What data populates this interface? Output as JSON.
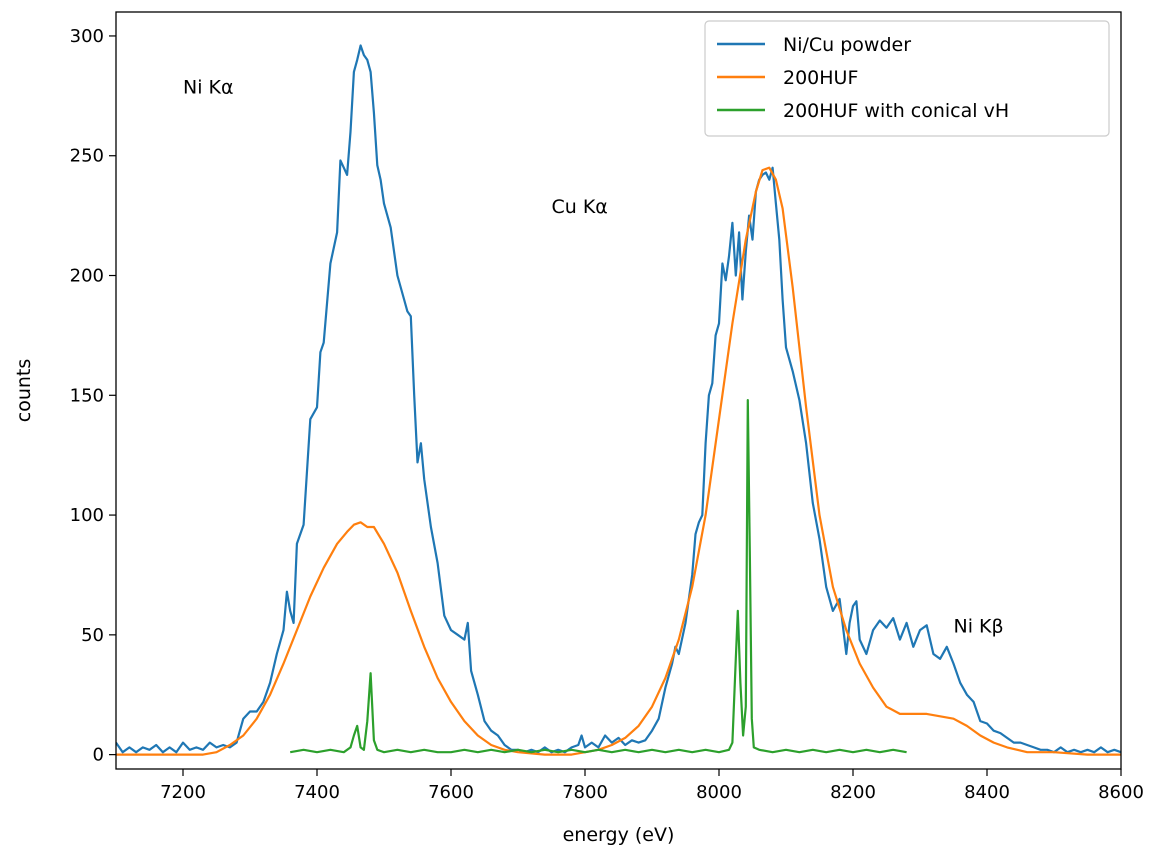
{
  "chart_data": {
    "type": "line",
    "title": "",
    "xlabel": "energy (eV)",
    "ylabel": "counts",
    "xlim": [
      7100,
      8600
    ],
    "ylim": [
      -6,
      310
    ],
    "xticks": [
      7200,
      7400,
      7600,
      7800,
      8000,
      8200,
      8400,
      8600
    ],
    "yticks": [
      0,
      50,
      100,
      150,
      200,
      250,
      300
    ],
    "grid": false,
    "legend": "top-right",
    "series": [
      {
        "name": "Ni/Cu powder",
        "color": "#1f77b4",
        "points": [
          [
            7100,
            5
          ],
          [
            7110,
            1
          ],
          [
            7120,
            3
          ],
          [
            7130,
            1
          ],
          [
            7140,
            3
          ],
          [
            7150,
            2
          ],
          [
            7160,
            4
          ],
          [
            7170,
            1
          ],
          [
            7180,
            3
          ],
          [
            7190,
            1
          ],
          [
            7200,
            5
          ],
          [
            7210,
            2
          ],
          [
            7220,
            3
          ],
          [
            7230,
            2
          ],
          [
            7240,
            5
          ],
          [
            7250,
            3
          ],
          [
            7260,
            4
          ],
          [
            7270,
            3
          ],
          [
            7280,
            5
          ],
          [
            7285,
            10
          ],
          [
            7290,
            15
          ],
          [
            7300,
            18
          ],
          [
            7310,
            18
          ],
          [
            7320,
            22
          ],
          [
            7330,
            30
          ],
          [
            7340,
            42
          ],
          [
            7350,
            52
          ],
          [
            7355,
            68
          ],
          [
            7360,
            60
          ],
          [
            7365,
            55
          ],
          [
            7370,
            88
          ],
          [
            7380,
            96
          ],
          [
            7390,
            140
          ],
          [
            7400,
            145
          ],
          [
            7405,
            168
          ],
          [
            7410,
            172
          ],
          [
            7420,
            205
          ],
          [
            7430,
            218
          ],
          [
            7435,
            248
          ],
          [
            7440,
            245
          ],
          [
            7445,
            242
          ],
          [
            7450,
            260
          ],
          [
            7455,
            285
          ],
          [
            7460,
            290
          ],
          [
            7465,
            296
          ],
          [
            7470,
            292
          ],
          [
            7475,
            290
          ],
          [
            7480,
            285
          ],
          [
            7485,
            268
          ],
          [
            7490,
            246
          ],
          [
            7495,
            240
          ],
          [
            7500,
            230
          ],
          [
            7510,
            220
          ],
          [
            7520,
            200
          ],
          [
            7530,
            190
          ],
          [
            7535,
            185
          ],
          [
            7540,
            183
          ],
          [
            7545,
            150
          ],
          [
            7550,
            122
          ],
          [
            7555,
            130
          ],
          [
            7560,
            115
          ],
          [
            7570,
            95
          ],
          [
            7580,
            80
          ],
          [
            7590,
            58
          ],
          [
            7600,
            52
          ],
          [
            7610,
            50
          ],
          [
            7620,
            48
          ],
          [
            7625,
            55
          ],
          [
            7630,
            35
          ],
          [
            7640,
            25
          ],
          [
            7650,
            14
          ],
          [
            7660,
            10
          ],
          [
            7670,
            8
          ],
          [
            7680,
            4
          ],
          [
            7690,
            2
          ],
          [
            7700,
            2
          ],
          [
            7710,
            1
          ],
          [
            7720,
            2
          ],
          [
            7730,
            1
          ],
          [
            7740,
            3
          ],
          [
            7750,
            1
          ],
          [
            7760,
            2
          ],
          [
            7770,
            1
          ],
          [
            7780,
            3
          ],
          [
            7790,
            4
          ],
          [
            7795,
            8
          ],
          [
            7800,
            3
          ],
          [
            7810,
            5
          ],
          [
            7820,
            3
          ],
          [
            7830,
            8
          ],
          [
            7840,
            5
          ],
          [
            7850,
            7
          ],
          [
            7860,
            4
          ],
          [
            7870,
            6
          ],
          [
            7880,
            5
          ],
          [
            7890,
            6
          ],
          [
            7900,
            10
          ],
          [
            7910,
            15
          ],
          [
            7920,
            28
          ],
          [
            7930,
            38
          ],
          [
            7935,
            45
          ],
          [
            7940,
            42
          ],
          [
            7950,
            55
          ],
          [
            7960,
            75
          ],
          [
            7965,
            92
          ],
          [
            7970,
            97
          ],
          [
            7975,
            100
          ],
          [
            7980,
            130
          ],
          [
            7985,
            150
          ],
          [
            7990,
            155
          ],
          [
            7995,
            175
          ],
          [
            8000,
            180
          ],
          [
            8005,
            205
          ],
          [
            8010,
            198
          ],
          [
            8015,
            208
          ],
          [
            8020,
            222
          ],
          [
            8025,
            200
          ],
          [
            8030,
            218
          ],
          [
            8035,
            190
          ],
          [
            8040,
            210
          ],
          [
            8045,
            225
          ],
          [
            8050,
            215
          ],
          [
            8055,
            235
          ],
          [
            8060,
            240
          ],
          [
            8065,
            242
          ],
          [
            8070,
            243
          ],
          [
            8075,
            240
          ],
          [
            8080,
            245
          ],
          [
            8085,
            230
          ],
          [
            8090,
            215
          ],
          [
            8095,
            190
          ],
          [
            8100,
            170
          ],
          [
            8110,
            160
          ],
          [
            8120,
            148
          ],
          [
            8130,
            130
          ],
          [
            8140,
            105
          ],
          [
            8150,
            90
          ],
          [
            8160,
            70
          ],
          [
            8170,
            60
          ],
          [
            8180,
            65
          ],
          [
            8190,
            42
          ],
          [
            8195,
            55
          ],
          [
            8200,
            62
          ],
          [
            8205,
            64
          ],
          [
            8210,
            48
          ],
          [
            8220,
            42
          ],
          [
            8230,
            52
          ],
          [
            8240,
            56
          ],
          [
            8250,
            53
          ],
          [
            8260,
            57
          ],
          [
            8270,
            48
          ],
          [
            8280,
            55
          ],
          [
            8290,
            45
          ],
          [
            8300,
            52
          ],
          [
            8310,
            54
          ],
          [
            8320,
            42
          ],
          [
            8330,
            40
          ],
          [
            8340,
            45
          ],
          [
            8350,
            38
          ],
          [
            8360,
            30
          ],
          [
            8370,
            25
          ],
          [
            8380,
            22
          ],
          [
            8390,
            14
          ],
          [
            8400,
            13
          ],
          [
            8410,
            10
          ],
          [
            8420,
            9
          ],
          [
            8430,
            7
          ],
          [
            8440,
            5
          ],
          [
            8450,
            5
          ],
          [
            8460,
            4
          ],
          [
            8470,
            3
          ],
          [
            8480,
            2
          ],
          [
            8490,
            2
          ],
          [
            8500,
            1
          ],
          [
            8510,
            3
          ],
          [
            8520,
            1
          ],
          [
            8530,
            2
          ],
          [
            8540,
            1
          ],
          [
            8550,
            2
          ],
          [
            8560,
            1
          ],
          [
            8570,
            3
          ],
          [
            8580,
            1
          ],
          [
            8590,
            2
          ],
          [
            8600,
            1
          ]
        ]
      },
      {
        "name": "200HUF",
        "color": "#ff7f0e",
        "points": [
          [
            7100,
            0
          ],
          [
            7150,
            0
          ],
          [
            7200,
            0
          ],
          [
            7230,
            0
          ],
          [
            7250,
            1
          ],
          [
            7270,
            4
          ],
          [
            7290,
            8
          ],
          [
            7310,
            15
          ],
          [
            7330,
            25
          ],
          [
            7350,
            38
          ],
          [
            7370,
            52
          ],
          [
            7390,
            66
          ],
          [
            7410,
            78
          ],
          [
            7430,
            88
          ],
          [
            7445,
            93
          ],
          [
            7455,
            96
          ],
          [
            7465,
            97
          ],
          [
            7475,
            95
          ],
          [
            7485,
            95
          ],
          [
            7500,
            88
          ],
          [
            7520,
            76
          ],
          [
            7540,
            60
          ],
          [
            7560,
            45
          ],
          [
            7580,
            32
          ],
          [
            7600,
            22
          ],
          [
            7620,
            14
          ],
          [
            7640,
            8
          ],
          [
            7660,
            4
          ],
          [
            7680,
            2
          ],
          [
            7700,
            1
          ],
          [
            7740,
            0
          ],
          [
            7780,
            0
          ],
          [
            7800,
            1
          ],
          [
            7820,
            2
          ],
          [
            7840,
            4
          ],
          [
            7860,
            7
          ],
          [
            7880,
            12
          ],
          [
            7900,
            20
          ],
          [
            7920,
            32
          ],
          [
            7940,
            48
          ],
          [
            7960,
            70
          ],
          [
            7980,
            100
          ],
          [
            8000,
            140
          ],
          [
            8020,
            180
          ],
          [
            8040,
            215
          ],
          [
            8055,
            235
          ],
          [
            8065,
            244
          ],
          [
            8075,
            245
          ],
          [
            8085,
            240
          ],
          [
            8095,
            228
          ],
          [
            8110,
            195
          ],
          [
            8130,
            145
          ],
          [
            8150,
            100
          ],
          [
            8170,
            70
          ],
          [
            8190,
            52
          ],
          [
            8210,
            38
          ],
          [
            8230,
            28
          ],
          [
            8250,
            20
          ],
          [
            8270,
            17
          ],
          [
            8290,
            17
          ],
          [
            8310,
            17
          ],
          [
            8330,
            16
          ],
          [
            8350,
            15
          ],
          [
            8370,
            12
          ],
          [
            8390,
            8
          ],
          [
            8410,
            5
          ],
          [
            8430,
            3
          ],
          [
            8460,
            1
          ],
          [
            8500,
            1
          ],
          [
            8550,
            0
          ],
          [
            8600,
            0
          ]
        ]
      },
      {
        "name": "200HUF with conical vH",
        "color": "#2ca02c",
        "points": [
          [
            7360,
            1
          ],
          [
            7380,
            2
          ],
          [
            7400,
            1
          ],
          [
            7420,
            2
          ],
          [
            7440,
            1
          ],
          [
            7450,
            3
          ],
          [
            7455,
            8
          ],
          [
            7460,
            12
          ],
          [
            7465,
            3
          ],
          [
            7470,
            2
          ],
          [
            7475,
            14
          ],
          [
            7480,
            34
          ],
          [
            7485,
            6
          ],
          [
            7490,
            2
          ],
          [
            7500,
            1
          ],
          [
            7520,
            2
          ],
          [
            7540,
            1
          ],
          [
            7560,
            2
          ],
          [
            7580,
            1
          ],
          [
            7600,
            1
          ],
          [
            7620,
            2
          ],
          [
            7640,
            1
          ],
          [
            7660,
            2
          ],
          [
            7680,
            1
          ],
          [
            7700,
            2
          ],
          [
            7720,
            1
          ],
          [
            7740,
            2
          ],
          [
            7760,
            1
          ],
          [
            7780,
            2
          ],
          [
            7800,
            1
          ],
          [
            7820,
            2
          ],
          [
            7840,
            1
          ],
          [
            7860,
            2
          ],
          [
            7880,
            1
          ],
          [
            7900,
            2
          ],
          [
            7920,
            1
          ],
          [
            7940,
            2
          ],
          [
            7960,
            1
          ],
          [
            7980,
            2
          ],
          [
            8000,
            1
          ],
          [
            8015,
            2
          ],
          [
            8020,
            5
          ],
          [
            8025,
            40
          ],
          [
            8028,
            60
          ],
          [
            8032,
            30
          ],
          [
            8036,
            8
          ],
          [
            8040,
            20
          ],
          [
            8043,
            148
          ],
          [
            8046,
            85
          ],
          [
            8049,
            15
          ],
          [
            8052,
            3
          ],
          [
            8060,
            2
          ],
          [
            8080,
            1
          ],
          [
            8100,
            2
          ],
          [
            8120,
            1
          ],
          [
            8140,
            2
          ],
          [
            8160,
            1
          ],
          [
            8180,
            2
          ],
          [
            8200,
            1
          ],
          [
            8220,
            2
          ],
          [
            8240,
            1
          ],
          [
            8260,
            2
          ],
          [
            8280,
            1
          ]
        ]
      }
    ],
    "annotations": [
      {
        "text": "Ni Kα",
        "x": 7200,
        "y": 276
      },
      {
        "text": "Cu Kα",
        "x": 7750,
        "y": 226
      },
      {
        "text": "Ni Kβ",
        "x": 8350,
        "y": 51
      }
    ]
  }
}
